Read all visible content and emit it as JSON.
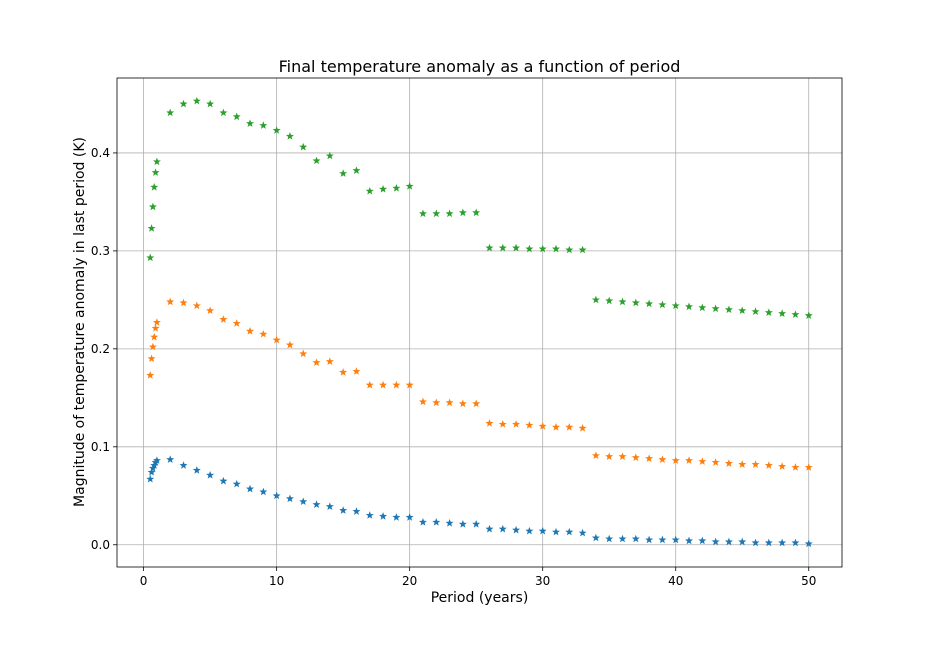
{
  "chart_data": {
    "type": "scatter",
    "title": "Final temperature anomaly as a function of period",
    "xlabel": "Period (years)",
    "ylabel": "Magnitude of temperature anomaly in last period (K)",
    "xlim": [
      -2,
      52.5
    ],
    "ylim": [
      -0.0227,
      0.4765
    ],
    "xticks": [
      0,
      10,
      20,
      30,
      40,
      50
    ],
    "yticks": [
      0.0,
      0.1,
      0.2,
      0.3,
      0.4
    ],
    "xtick_labels": [
      "0",
      "10",
      "20",
      "30",
      "40",
      "50"
    ],
    "ytick_labels": [
      "0.0",
      "0.1",
      "0.2",
      "0.3",
      "0.4"
    ],
    "grid": true,
    "marker": "star",
    "x": [
      0.5,
      0.6,
      0.7,
      0.8,
      0.9,
      1,
      2,
      3,
      4,
      5,
      6,
      7,
      8,
      9,
      10,
      11,
      12,
      13,
      14,
      15,
      16,
      17,
      18,
      19,
      20,
      21,
      22,
      23,
      24,
      25,
      26,
      27,
      28,
      29,
      30,
      31,
      32,
      33,
      34,
      35,
      36,
      37,
      38,
      39,
      40,
      41,
      42,
      43,
      44,
      45,
      46,
      47,
      48,
      49,
      50
    ],
    "series": [
      {
        "color": "#1f77b4",
        "values": [
          0.067,
          0.074,
          0.078,
          0.081,
          0.084,
          0.086,
          0.087,
          0.081,
          0.076,
          0.071,
          0.065,
          0.062,
          0.057,
          0.054,
          0.05,
          0.047,
          0.044,
          0.041,
          0.039,
          0.035,
          0.034,
          0.03,
          0.029,
          0.028,
          0.028,
          0.023,
          0.023,
          0.022,
          0.021,
          0.021,
          0.016,
          0.016,
          0.015,
          0.014,
          0.014,
          0.013,
          0.013,
          0.012,
          0.007,
          0.006,
          0.006,
          0.006,
          0.005,
          0.005,
          0.005,
          0.004,
          0.004,
          0.003,
          0.003,
          0.003,
          0.002,
          0.002,
          0.002,
          0.002,
          0.001
        ]
      },
      {
        "color": "#ff7f0e",
        "values": [
          0.173,
          0.19,
          0.202,
          0.212,
          0.221,
          0.227,
          0.248,
          0.247,
          0.244,
          0.239,
          0.23,
          0.226,
          0.218,
          0.215,
          0.209,
          0.204,
          0.195,
          0.186,
          0.187,
          0.176,
          0.177,
          0.163,
          0.163,
          0.163,
          0.163,
          0.146,
          0.145,
          0.145,
          0.144,
          0.144,
          0.124,
          0.123,
          0.123,
          0.122,
          0.121,
          0.12,
          0.12,
          0.119,
          0.091,
          0.09,
          0.09,
          0.089,
          0.088,
          0.087,
          0.086,
          0.086,
          0.085,
          0.084,
          0.083,
          0.082,
          0.082,
          0.081,
          0.08,
          0.079,
          0.079
        ]
      },
      {
        "color": "#2ca02c",
        "values": [
          0.293,
          0.323,
          0.345,
          0.365,
          0.38,
          0.391,
          0.441,
          0.45,
          0.453,
          0.45,
          0.441,
          0.437,
          0.43,
          0.428,
          0.423,
          0.417,
          0.406,
          0.392,
          0.397,
          0.379,
          0.382,
          0.361,
          0.363,
          0.364,
          0.366,
          0.338,
          0.338,
          0.338,
          0.339,
          0.339,
          0.303,
          0.303,
          0.303,
          0.302,
          0.302,
          0.302,
          0.301,
          0.301,
          0.25,
          0.249,
          0.248,
          0.247,
          0.246,
          0.245,
          0.244,
          0.243,
          0.242,
          0.241,
          0.24,
          0.239,
          0.238,
          0.237,
          0.236,
          0.235,
          0.234
        ]
      }
    ]
  }
}
